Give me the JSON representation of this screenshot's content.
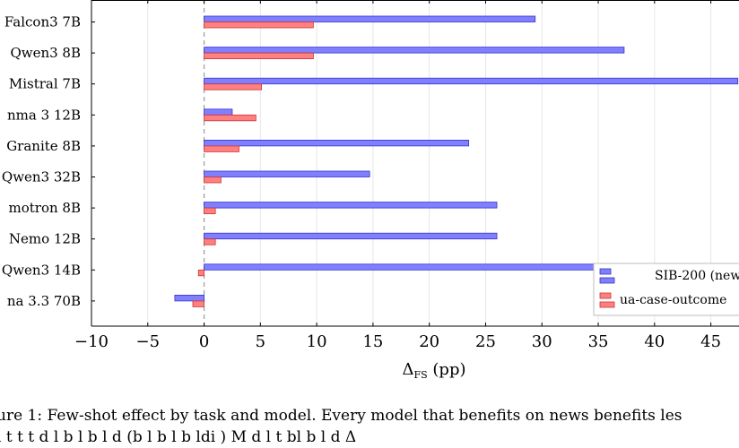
{
  "chart_data": {
    "type": "bar",
    "orientation": "horizontal",
    "categories": [
      "Falcon3 7B",
      "Qwen3 8B",
      "Mistral 7B",
      "nma 3 12B",
      "Granite 8B",
      "Qwen3 32B",
      "motron 8B",
      "Nemo 12B",
      "Qwen3 14B",
      "na 3.3 70B"
    ],
    "series": [
      {
        "name": "SIB-200 (new",
        "color": "#8080ff",
        "stroke": "#3333cc",
        "values": [
          29.4,
          37.3,
          47.4,
          2.5,
          23.5,
          14.7,
          26.0,
          26.0,
          35.0,
          -2.6
        ]
      },
      {
        "name": "ua-case-outcome",
        "color": "#ff8080",
        "stroke": "#cc3333",
        "values": [
          9.7,
          9.7,
          5.1,
          4.6,
          3.1,
          1.5,
          1.0,
          1.0,
          -0.5,
          -1.0
        ]
      }
    ],
    "xlabel": "ΔFS (pp)",
    "xlabel_main": "Δ",
    "xlabel_sub": "FS",
    "xlabel_unit": " (pp)",
    "xticks": [
      -10,
      -5,
      0,
      5,
      10,
      15,
      20,
      25,
      30,
      35,
      40,
      45
    ],
    "xtick_labels": [
      "−10",
      "−5",
      "0",
      "5",
      "10",
      "15",
      "20",
      "25",
      "30",
      "35",
      "40",
      "45"
    ],
    "xlim": [
      -10,
      47.5
    ],
    "grid": "vertical",
    "zero_line": "dashed",
    "legend_position": "bottom-right"
  },
  "caption": {
    "line1": "ure 1: Few-shot effect by task and model. Every model that benefits on news benefits les",
    "line2": "l t t t         d l b l       b    l d (b l    b    l b  ldi  )  M d l       t bl     b  l d Δ"
  }
}
